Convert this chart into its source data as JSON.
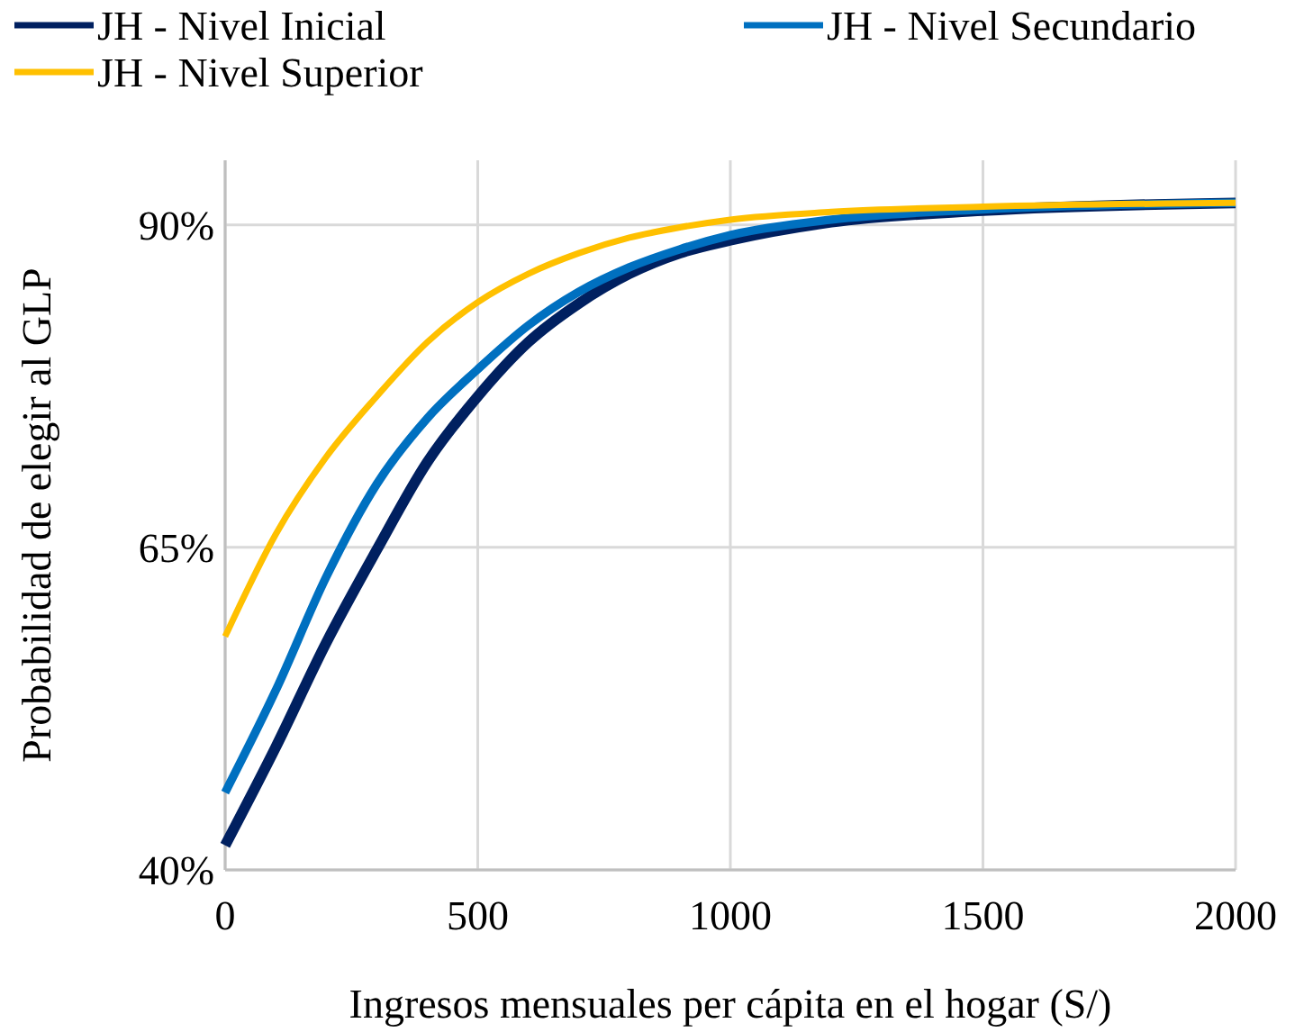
{
  "chart_data": {
    "type": "line",
    "xlabel": "Ingresos mensuales per cápita en el hogar (S/)",
    "ylabel": "Probabilidad de elegir al GLP",
    "x": [
      0,
      100,
      200,
      300,
      400,
      500,
      600,
      700,
      800,
      900,
      1000,
      1200,
      1500,
      2000
    ],
    "series": [
      {
        "name": "JH - Nivel Inicial",
        "color": "#002060",
        "values": [
          41.9,
          49.5,
          57.6,
          64.8,
          71.6,
          76.7,
          80.9,
          83.9,
          86.2,
          87.8,
          88.8,
          90.2,
          91.1,
          91.7
        ]
      },
      {
        "name": "JH - Nivel Secundario",
        "color": "#0070c0",
        "values": [
          46.0,
          53.9,
          62.7,
          69.9,
          75.0,
          78.8,
          82.2,
          84.8,
          86.7,
          88.1,
          89.2,
          90.4,
          91.2,
          91.7
        ]
      },
      {
        "name": "JH - Nivel Superior",
        "color": "#ffc000",
        "values": [
          58.1,
          66.0,
          72.0,
          76.7,
          80.9,
          84.0,
          86.2,
          87.8,
          89.0,
          89.8,
          90.4,
          91.0,
          91.4,
          91.7
        ]
      }
    ],
    "xlim": [
      0,
      2000
    ],
    "xticks": [
      0,
      500,
      1000,
      1500,
      2000
    ],
    "ylim": [
      40,
      95
    ],
    "yticks": [
      {
        "value": 40,
        "label": "40%"
      },
      {
        "value": 65,
        "label": "65%"
      },
      {
        "value": 90,
        "label": "90%"
      }
    ],
    "grid": true,
    "legend": "top",
    "marker": "none",
    "line_style": "solid"
  }
}
